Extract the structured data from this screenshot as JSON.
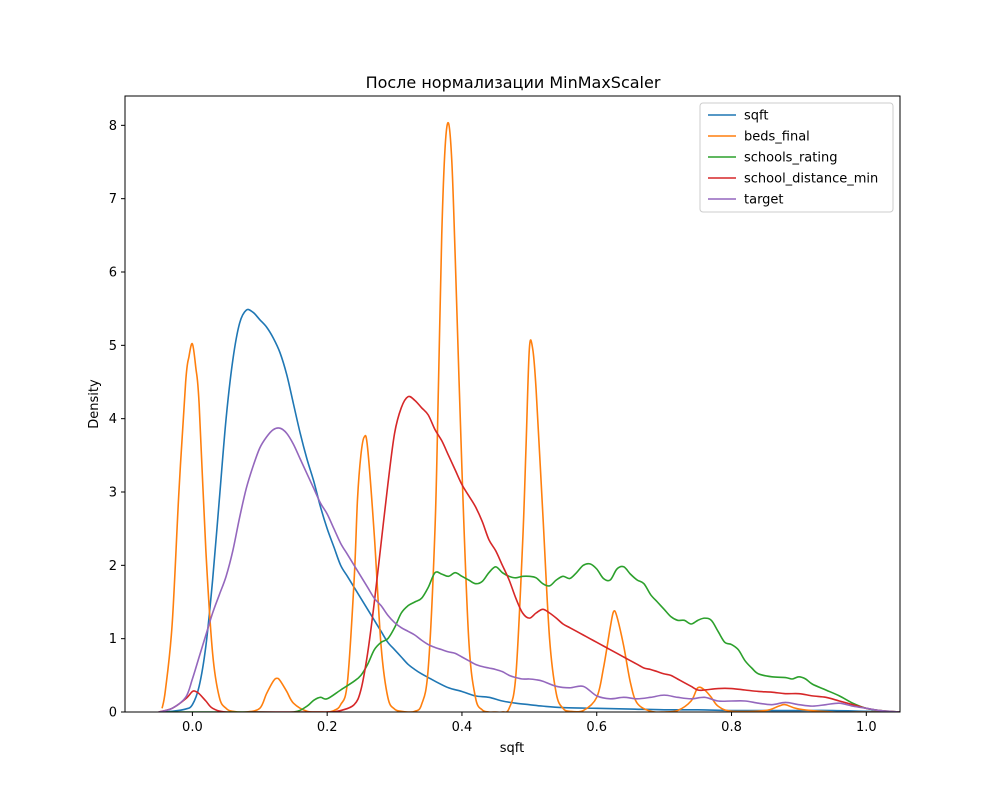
{
  "chart_data": {
    "type": "line",
    "title": "После нормализации MinMaxScaler",
    "xlabel": "sqft",
    "ylabel": "Density",
    "xlim": [
      -0.1,
      1.05
    ],
    "ylim": [
      0,
      8.4
    ],
    "xticks": [
      0.0,
      0.2,
      0.4,
      0.6,
      0.8,
      1.0
    ],
    "xtick_labels": [
      "0.0",
      "0.2",
      "0.4",
      "0.6",
      "0.8",
      "1.0"
    ],
    "yticks": [
      0,
      1,
      2,
      3,
      4,
      5,
      6,
      7,
      8
    ],
    "ytick_labels": [
      "0",
      "1",
      "2",
      "3",
      "4",
      "5",
      "6",
      "7",
      "8"
    ],
    "grid": false,
    "legend_position": "top-right",
    "series": [
      {
        "name": "sqft",
        "color": "#1f77b4",
        "x": [
          -0.05,
          -0.03,
          -0.01,
          0.0,
          0.01,
          0.02,
          0.03,
          0.04,
          0.05,
          0.06,
          0.07,
          0.08,
          0.09,
          0.1,
          0.11,
          0.12,
          0.13,
          0.14,
          0.15,
          0.16,
          0.17,
          0.18,
          0.19,
          0.2,
          0.21,
          0.22,
          0.23,
          0.24,
          0.25,
          0.26,
          0.27,
          0.28,
          0.29,
          0.3,
          0.31,
          0.32,
          0.33,
          0.34,
          0.35,
          0.36,
          0.38,
          0.4,
          0.42,
          0.44,
          0.46,
          0.48,
          0.5,
          0.52,
          0.55,
          0.6,
          0.65,
          0.7,
          0.75,
          0.8,
          0.85,
          0.9,
          0.95,
          1.0,
          1.05
        ],
        "y": [
          0.0,
          0.01,
          0.04,
          0.1,
          0.35,
          0.9,
          1.8,
          2.9,
          4.0,
          4.8,
          5.3,
          5.48,
          5.45,
          5.35,
          5.25,
          5.1,
          4.9,
          4.6,
          4.2,
          3.8,
          3.45,
          3.15,
          2.8,
          2.5,
          2.25,
          2.0,
          1.85,
          1.7,
          1.55,
          1.4,
          1.25,
          1.1,
          0.95,
          0.85,
          0.75,
          0.65,
          0.58,
          0.52,
          0.47,
          0.42,
          0.33,
          0.28,
          0.22,
          0.2,
          0.15,
          0.12,
          0.1,
          0.08,
          0.06,
          0.05,
          0.04,
          0.03,
          0.03,
          0.02,
          0.02,
          0.02,
          0.02,
          0.01,
          0.0
        ]
      },
      {
        "name": "beds_final",
        "color": "#ff7f0e",
        "x": [
          -0.045,
          -0.04,
          -0.03,
          -0.02,
          -0.01,
          -0.005,
          0.0,
          0.005,
          0.01,
          0.02,
          0.03,
          0.04,
          0.05,
          0.06,
          0.08,
          0.1,
          0.11,
          0.12,
          0.125,
          0.13,
          0.14,
          0.15,
          0.17,
          0.19,
          0.2,
          0.21,
          0.22,
          0.23,
          0.24,
          0.245,
          0.25,
          0.255,
          0.26,
          0.27,
          0.28,
          0.29,
          0.3,
          0.31,
          0.32,
          0.33,
          0.34,
          0.35,
          0.36,
          0.365,
          0.37,
          0.375,
          0.38,
          0.385,
          0.39,
          0.4,
          0.41,
          0.42,
          0.43,
          0.44,
          0.45,
          0.46,
          0.47,
          0.48,
          0.49,
          0.495,
          0.5,
          0.505,
          0.51,
          0.52,
          0.53,
          0.54,
          0.55,
          0.56,
          0.58,
          0.6,
          0.61,
          0.62,
          0.625,
          0.63,
          0.64,
          0.65,
          0.66,
          0.68,
          0.7,
          0.72,
          0.74,
          0.75,
          0.76,
          0.77,
          0.78,
          0.8,
          0.85,
          0.87,
          0.88,
          0.9,
          0.95,
          1.0,
          1.04
        ],
        "y": [
          0.05,
          0.3,
          1.2,
          3.0,
          4.5,
          4.85,
          5.02,
          4.7,
          4.2,
          2.2,
          0.8,
          0.2,
          0.05,
          0.01,
          0.0,
          0.05,
          0.25,
          0.42,
          0.46,
          0.43,
          0.28,
          0.12,
          0.01,
          0.0,
          0.0,
          0.02,
          0.1,
          0.4,
          1.8,
          2.9,
          3.5,
          3.75,
          3.6,
          2.4,
          0.9,
          0.2,
          0.04,
          0.01,
          0.0,
          0.01,
          0.1,
          0.6,
          2.5,
          4.4,
          6.5,
          7.7,
          8.03,
          7.5,
          6.2,
          3.3,
          1.0,
          0.2,
          0.03,
          0.0,
          0.0,
          0.0,
          0.05,
          0.5,
          2.3,
          3.6,
          4.95,
          4.95,
          4.4,
          2.7,
          1.0,
          0.25,
          0.05,
          0.01,
          0.02,
          0.2,
          0.6,
          1.15,
          1.37,
          1.3,
          0.9,
          0.4,
          0.12,
          0.01,
          0.0,
          0.02,
          0.15,
          0.33,
          0.3,
          0.2,
          0.08,
          0.01,
          0.02,
          0.08,
          0.1,
          0.04,
          0.0,
          0.0,
          0.0
        ]
      },
      {
        "name": "schools_rating",
        "color": "#2ca02c",
        "x": [
          -0.05,
          0.0,
          0.1,
          0.15,
          0.17,
          0.18,
          0.19,
          0.2,
          0.22,
          0.24,
          0.25,
          0.26,
          0.27,
          0.28,
          0.29,
          0.3,
          0.31,
          0.32,
          0.33,
          0.34,
          0.35,
          0.36,
          0.37,
          0.38,
          0.39,
          0.4,
          0.41,
          0.42,
          0.43,
          0.44,
          0.45,
          0.46,
          0.47,
          0.48,
          0.49,
          0.5,
          0.51,
          0.52,
          0.53,
          0.54,
          0.55,
          0.56,
          0.57,
          0.58,
          0.59,
          0.6,
          0.61,
          0.62,
          0.63,
          0.64,
          0.65,
          0.66,
          0.67,
          0.68,
          0.69,
          0.7,
          0.71,
          0.72,
          0.73,
          0.74,
          0.75,
          0.76,
          0.77,
          0.78,
          0.79,
          0.8,
          0.81,
          0.82,
          0.83,
          0.84,
          0.86,
          0.88,
          0.89,
          0.9,
          0.91,
          0.92,
          0.94,
          0.96,
          0.98,
          1.0,
          1.02,
          1.05
        ],
        "y": [
          0.0,
          0.0,
          0.0,
          0.0,
          0.08,
          0.16,
          0.2,
          0.18,
          0.3,
          0.42,
          0.5,
          0.65,
          0.85,
          0.95,
          1.0,
          1.15,
          1.35,
          1.45,
          1.5,
          1.55,
          1.7,
          1.9,
          1.88,
          1.85,
          1.9,
          1.85,
          1.8,
          1.75,
          1.78,
          1.9,
          1.98,
          1.9,
          1.85,
          1.83,
          1.85,
          1.85,
          1.83,
          1.75,
          1.72,
          1.8,
          1.85,
          1.82,
          1.9,
          2.0,
          2.02,
          1.95,
          1.82,
          1.8,
          1.95,
          1.98,
          1.88,
          1.8,
          1.75,
          1.6,
          1.5,
          1.4,
          1.3,
          1.25,
          1.25,
          1.2,
          1.25,
          1.28,
          1.25,
          1.1,
          0.95,
          0.92,
          0.85,
          0.7,
          0.6,
          0.52,
          0.48,
          0.47,
          0.45,
          0.48,
          0.45,
          0.38,
          0.3,
          0.22,
          0.12,
          0.05,
          0.02,
          0.0
        ]
      },
      {
        "name": "school_distance_min",
        "color": "#d62728",
        "x": [
          -0.05,
          -0.03,
          -0.01,
          0.0,
          0.005,
          0.01,
          0.02,
          0.03,
          0.05,
          0.1,
          0.15,
          0.2,
          0.22,
          0.24,
          0.25,
          0.26,
          0.27,
          0.28,
          0.29,
          0.3,
          0.31,
          0.32,
          0.33,
          0.34,
          0.35,
          0.36,
          0.37,
          0.38,
          0.39,
          0.4,
          0.41,
          0.42,
          0.43,
          0.44,
          0.45,
          0.46,
          0.47,
          0.48,
          0.49,
          0.5,
          0.51,
          0.52,
          0.53,
          0.54,
          0.55,
          0.56,
          0.57,
          0.58,
          0.59,
          0.6,
          0.61,
          0.62,
          0.63,
          0.64,
          0.65,
          0.66,
          0.67,
          0.68,
          0.69,
          0.7,
          0.71,
          0.72,
          0.73,
          0.74,
          0.75,
          0.76,
          0.78,
          0.8,
          0.82,
          0.84,
          0.86,
          0.88,
          0.9,
          0.92,
          0.94,
          0.96,
          0.98,
          1.0,
          1.02,
          1.05
        ],
        "y": [
          0.0,
          0.05,
          0.18,
          0.28,
          0.28,
          0.25,
          0.15,
          0.05,
          0.0,
          0.0,
          0.0,
          0.0,
          0.02,
          0.1,
          0.3,
          0.8,
          1.5,
          2.3,
          3.1,
          3.8,
          4.15,
          4.3,
          4.25,
          4.15,
          4.05,
          3.85,
          3.7,
          3.5,
          3.3,
          3.1,
          2.95,
          2.8,
          2.6,
          2.35,
          2.2,
          2.0,
          1.8,
          1.55,
          1.35,
          1.28,
          1.35,
          1.4,
          1.35,
          1.28,
          1.2,
          1.15,
          1.1,
          1.05,
          1.0,
          0.95,
          0.9,
          0.85,
          0.8,
          0.75,
          0.7,
          0.65,
          0.6,
          0.58,
          0.55,
          0.52,
          0.5,
          0.45,
          0.4,
          0.35,
          0.3,
          0.3,
          0.32,
          0.32,
          0.3,
          0.28,
          0.27,
          0.25,
          0.25,
          0.22,
          0.2,
          0.15,
          0.1,
          0.05,
          0.02,
          0.0
        ]
      },
      {
        "name": "target",
        "color": "#9467bd",
        "x": [
          -0.05,
          -0.03,
          -0.01,
          0.0,
          0.01,
          0.02,
          0.03,
          0.04,
          0.05,
          0.06,
          0.07,
          0.08,
          0.09,
          0.1,
          0.11,
          0.12,
          0.13,
          0.14,
          0.15,
          0.16,
          0.17,
          0.18,
          0.19,
          0.2,
          0.21,
          0.22,
          0.23,
          0.24,
          0.25,
          0.26,
          0.27,
          0.28,
          0.29,
          0.3,
          0.31,
          0.32,
          0.33,
          0.34,
          0.35,
          0.36,
          0.37,
          0.38,
          0.39,
          0.4,
          0.41,
          0.42,
          0.43,
          0.44,
          0.45,
          0.46,
          0.47,
          0.48,
          0.49,
          0.5,
          0.51,
          0.52,
          0.54,
          0.56,
          0.58,
          0.6,
          0.62,
          0.64,
          0.66,
          0.68,
          0.7,
          0.72,
          0.74,
          0.76,
          0.78,
          0.8,
          0.82,
          0.84,
          0.86,
          0.88,
          0.9,
          0.92,
          0.94,
          0.96,
          0.98,
          1.0,
          1.02,
          1.05
        ],
        "y": [
          0.0,
          0.05,
          0.2,
          0.45,
          0.75,
          1.05,
          1.35,
          1.6,
          1.85,
          2.2,
          2.65,
          3.05,
          3.35,
          3.6,
          3.75,
          3.85,
          3.87,
          3.8,
          3.65,
          3.45,
          3.25,
          3.05,
          2.85,
          2.7,
          2.5,
          2.3,
          2.15,
          2.0,
          1.85,
          1.7,
          1.55,
          1.45,
          1.32,
          1.22,
          1.15,
          1.1,
          1.05,
          0.98,
          0.92,
          0.88,
          0.85,
          0.82,
          0.8,
          0.75,
          0.7,
          0.65,
          0.62,
          0.6,
          0.58,
          0.55,
          0.5,
          0.47,
          0.45,
          0.45,
          0.44,
          0.42,
          0.35,
          0.33,
          0.35,
          0.22,
          0.18,
          0.2,
          0.18,
          0.2,
          0.23,
          0.2,
          0.18,
          0.2,
          0.15,
          0.15,
          0.15,
          0.12,
          0.1,
          0.13,
          0.1,
          0.08,
          0.1,
          0.12,
          0.08,
          0.05,
          0.02,
          0.0
        ]
      }
    ]
  }
}
